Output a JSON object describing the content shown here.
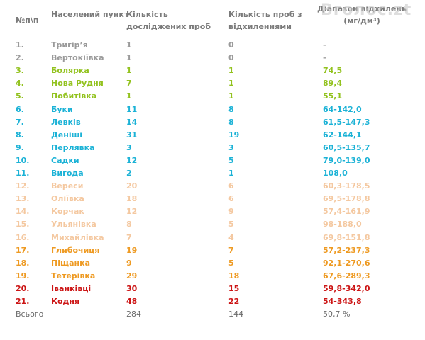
{
  "watermark": "Вголос.zt",
  "table": {
    "header": [
      "№п\\п",
      "Населений пункт",
      "Кількість досліджених проб",
      "Кількість проб з відхиленнями",
      "Діапазон відхилень (мг/дм³)"
    ],
    "rows": [
      {
        "cells": [
          "1.",
          "Тригір’я",
          "1",
          "0",
          "–"
        ],
        "color": "#9a9a9a"
      },
      {
        "cells": [
          "2.",
          "Вертокіївка",
          "1",
          "0",
          "–"
        ],
        "color": "#9a9a9a"
      },
      {
        "cells": [
          "3.",
          "Болярка",
          "1",
          "1",
          "74,5"
        ],
        "color": "#92c21e"
      },
      {
        "cells": [
          "4.",
          "Нова Рудня",
          "7",
          "1",
          "89,4"
        ],
        "color": "#92c21e"
      },
      {
        "cells": [
          "5.",
          "Побитівка",
          "1",
          "1",
          "55,1"
        ],
        "color": "#92c21e"
      },
      {
        "cells": [
          "6.",
          "Буки",
          "11",
          "8",
          "64-142,0"
        ],
        "color": "#1bb2d6"
      },
      {
        "cells": [
          "7.",
          "Левків",
          "14",
          "8",
          "61,5-147,3"
        ],
        "color": "#1bb2d6"
      },
      {
        "cells": [
          "8.",
          "Деніші",
          "31",
          "19",
          "62-144,1"
        ],
        "color": "#1bb2d6"
      },
      {
        "cells": [
          "9.",
          "Перлявка",
          "3",
          "3",
          "60,5-135,7"
        ],
        "color": "#1bb2d6"
      },
      {
        "cells": [
          "10.",
          "Садки",
          "12",
          "5",
          "79,0-139,0"
        ],
        "color": "#1bb2d6"
      },
      {
        "cells": [
          "11.",
          "Вигода",
          "2",
          "1",
          "108,0"
        ],
        "color": "#1bb2d6"
      },
      {
        "cells": [
          "12.",
          "Вереси",
          "20",
          "6",
          "60,3-178,5"
        ],
        "color": "#f4c8a0"
      },
      {
        "cells": [
          "13.",
          "Оліївка",
          "18",
          "6",
          "69,5-178,8"
        ],
        "color": "#f4c8a0"
      },
      {
        "cells": [
          "14.",
          "Корчак",
          "12",
          "9",
          "57,4-161,9"
        ],
        "color": "#f4c8a0"
      },
      {
        "cells": [
          "15.",
          "Ульянівка",
          "8",
          "5",
          "98-188,0"
        ],
        "color": "#f4c8a0"
      },
      {
        "cells": [
          "16.",
          "Михайлівка",
          "7",
          "4",
          "69,8-151,8"
        ],
        "color": "#f4c8a0"
      },
      {
        "cells": [
          "17.",
          "Глибочиця",
          "19",
          "7",
          "57,2-237,3"
        ],
        "color": "#ee9a22"
      },
      {
        "cells": [
          "18.",
          "Піщанка",
          "9",
          "5",
          "92,1-270,6"
        ],
        "color": "#ee9a22"
      },
      {
        "cells": [
          "19.",
          "Тетерівка",
          "29",
          "18",
          "67,6-289,3"
        ],
        "color": "#ee9a22"
      },
      {
        "cells": [
          "20.",
          "Іванківці",
          "30",
          "15",
          "59,8-342,0"
        ],
        "color": "#cc1515"
      },
      {
        "cells": [
          "21.",
          "Кодня",
          "48",
          "22",
          "54-343,8"
        ],
        "color": "#cc1515"
      }
    ],
    "total": [
      "Всього",
      "284",
      "144",
      "50,7 %"
    ]
  }
}
